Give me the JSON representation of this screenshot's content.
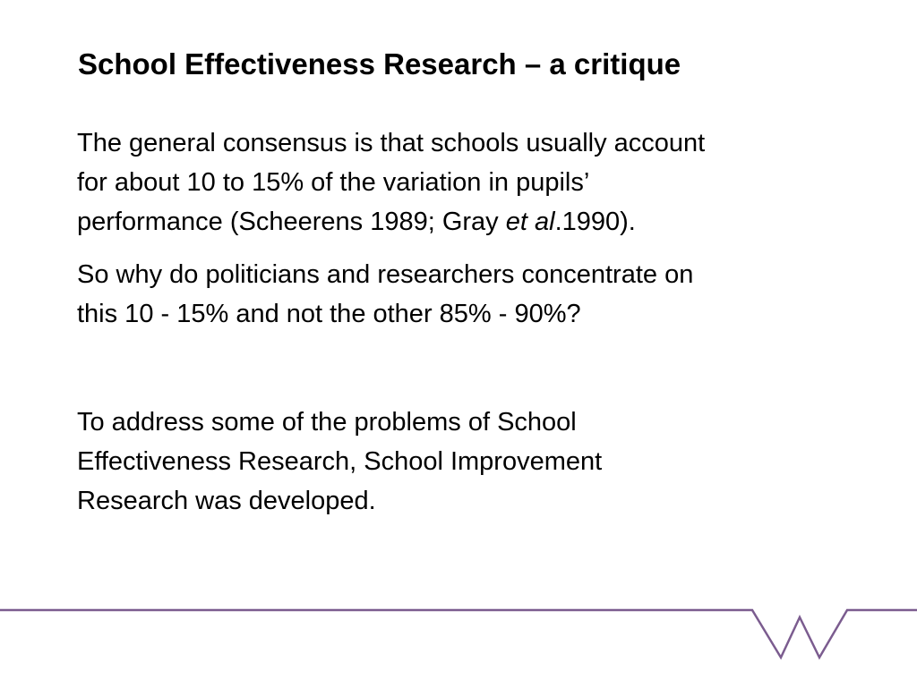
{
  "slide": {
    "title": "School Effectiveness Research – a critique",
    "paragraph1": {
      "line1": "The general consensus is that schools usually account",
      "line2": "for about 10 to 15% of the variation in pupils’",
      "line3_pre": "performance  (Scheerens 1989; Gray ",
      "line3_italic": "et al",
      "line3_post": ".1990)."
    },
    "paragraph2": {
      "line1": "So why do politicians and researchers concentrate on",
      "line2": "this 10 - 15% and not the other 85% - 90%?"
    },
    "paragraph3": {
      "line1": "To address some of the problems of School",
      "line2": "Effectiveness Research, School Improvement",
      "line3": "Research was developed."
    }
  },
  "colors": {
    "accent": "#7b5c8f",
    "text": "#000000",
    "background": "#ffffff"
  }
}
